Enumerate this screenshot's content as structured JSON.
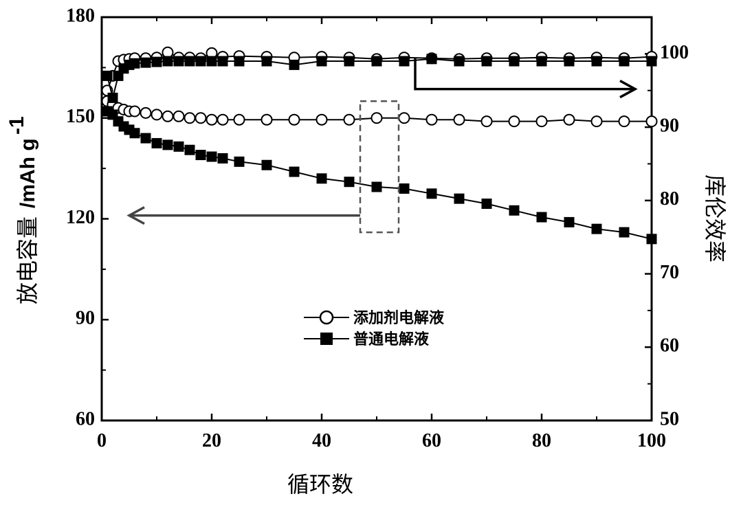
{
  "chart_data": {
    "type": "line",
    "title": "",
    "xlabel": "循环数",
    "ylabel_left_text": "放电容量",
    "ylabel_left_unit": "/mAh g",
    "ylabel_left_unit_sup": "-1",
    "ylabel_right": "库伦效率",
    "xlim": [
      0,
      100
    ],
    "ylim_left": [
      60,
      180
    ],
    "ylim_right": [
      50,
      105
    ],
    "x_ticks": [
      0,
      20,
      40,
      60,
      80,
      100
    ],
    "y_left_ticks": [
      60,
      90,
      120,
      150,
      180
    ],
    "y_right_ticks": [
      50,
      60,
      70,
      80,
      90,
      100
    ],
    "grid": false,
    "legend_position": "center-left",
    "legend": [
      {
        "label": "添加剂电解液",
        "marker": "circle"
      },
      {
        "label": "普通电解液",
        "marker": "square"
      }
    ],
    "series": [
      {
        "name": "添加剂电解液",
        "quantity": "capacity",
        "axis": "left",
        "marker": "circle",
        "x": [
          1,
          2,
          3,
          4,
          5,
          6,
          8,
          10,
          12,
          14,
          16,
          18,
          20,
          22,
          25,
          30,
          35,
          40,
          45,
          50,
          55,
          60,
          65,
          70,
          75,
          80,
          85,
          90,
          95,
          100
        ],
        "values": [
          155,
          154,
          153,
          152.5,
          152,
          152,
          151.5,
          151,
          150.5,
          150.5,
          150,
          150,
          149.5,
          149.5,
          149.5,
          149.5,
          149.5,
          149.5,
          149.5,
          150,
          150,
          149.5,
          149.5,
          149,
          149,
          149,
          149.5,
          149,
          149,
          149
        ]
      },
      {
        "name": "普通电解液",
        "quantity": "capacity",
        "axis": "left",
        "marker": "square",
        "x": [
          1,
          2,
          3,
          4,
          5,
          6,
          8,
          10,
          12,
          14,
          16,
          18,
          20,
          22,
          25,
          30,
          35,
          40,
          45,
          50,
          55,
          60,
          65,
          70,
          75,
          80,
          85,
          90,
          95,
          100
        ],
        "values": [
          152,
          151,
          149,
          147.5,
          146.5,
          145.5,
          144,
          142.5,
          142,
          141.5,
          140.5,
          139,
          138.5,
          138,
          137,
          136,
          134,
          132,
          131,
          129.5,
          129,
          127.5,
          126,
          124.5,
          122.5,
          120.5,
          119,
          117,
          116,
          114
        ]
      },
      {
        "name": "添加剂电解液",
        "quantity": "coulombic efficiency",
        "axis": "right",
        "marker": "circle",
        "x": [
          1,
          2,
          3,
          4,
          5,
          6,
          8,
          10,
          12,
          14,
          16,
          18,
          20,
          22,
          25,
          30,
          35,
          40,
          45,
          50,
          55,
          60,
          65,
          70,
          75,
          80,
          85,
          90,
          95,
          100
        ],
        "values": [
          95,
          97,
          99,
          99.2,
          99.3,
          99.4,
          99.4,
          99.5,
          100.2,
          99.5,
          99.5,
          99.4,
          100.1,
          99.6,
          99.7,
          99.6,
          99.5,
          99.6,
          99.5,
          99.3,
          99.5,
          99.4,
          99.3,
          99.4,
          99.4,
          99.5,
          99.4,
          99.5,
          99.4,
          99.6
        ]
      },
      {
        "name": "普通电解液",
        "quantity": "coulombic efficiency",
        "axis": "right",
        "marker": "square",
        "x": [
          1,
          2,
          3,
          4,
          5,
          6,
          8,
          10,
          12,
          14,
          16,
          18,
          20,
          22,
          25,
          30,
          35,
          40,
          45,
          50,
          55,
          60,
          65,
          70,
          75,
          80,
          85,
          90,
          95,
          100
        ],
        "values": [
          97,
          94,
          97,
          98,
          98.5,
          98.7,
          98.8,
          98.9,
          99,
          99,
          99,
          99,
          99,
          99,
          99,
          99,
          98.5,
          99,
          99,
          99,
          99,
          99.3,
          99,
          99,
          99,
          99,
          99,
          99,
          99,
          99
        ]
      }
    ],
    "annotations": [
      {
        "type": "dashed-box",
        "x_range": [
          47,
          54
        ],
        "y_range_left": [
          116,
          155
        ]
      },
      {
        "type": "arrow",
        "direction": "left",
        "axis": "left",
        "from_x": 47,
        "to_x": 5,
        "y": 121
      },
      {
        "type": "arrow",
        "direction": "right",
        "axis": "right",
        "from_x": 57,
        "to_x": 97,
        "y_start": 99.5,
        "y": 95.2
      }
    ]
  }
}
